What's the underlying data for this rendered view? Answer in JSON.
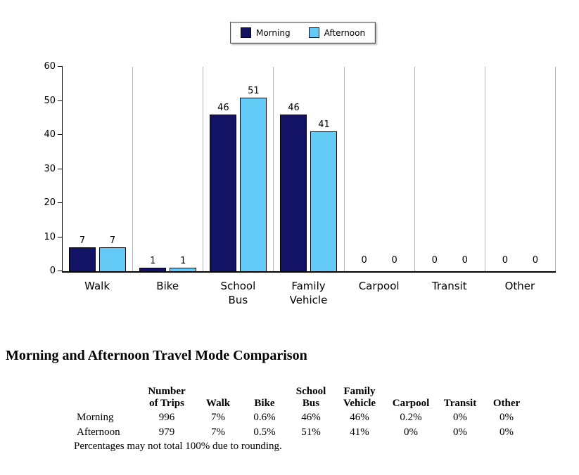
{
  "legend": {
    "items": [
      {
        "label": "Morning",
        "color": "#131366"
      },
      {
        "label": "Afternoon",
        "color": "#63cbf5"
      }
    ]
  },
  "chart_data": {
    "type": "bar",
    "title": "",
    "categories": [
      "Walk",
      "Bike",
      "School\nBus",
      "Family\nVehicle",
      "Carpool",
      "Transit",
      "Other"
    ],
    "series": [
      {
        "name": "Morning",
        "color": "#131366",
        "values": [
          7,
          1,
          46,
          46,
          0,
          0,
          0
        ]
      },
      {
        "name": "Afternoon",
        "color": "#63cbf5",
        "values": [
          7,
          1,
          51,
          41,
          0,
          0,
          0
        ]
      }
    ],
    "ylim": [
      0,
      60
    ],
    "yticks": [
      0,
      10,
      20,
      30,
      40,
      50,
      60
    ],
    "grid": "vertical-separators",
    "legend_position": "top-center",
    "bar_value_labels": true
  },
  "title": "Morning and Afternoon Travel Mode Comparison",
  "table": {
    "columns": [
      "",
      "Number\nof Trips",
      "Walk",
      "Bike",
      "School\nBus",
      "Family\nVehicle",
      "Carpool",
      "Transit",
      "Other"
    ],
    "rows": [
      {
        "label": "Morning",
        "values": [
          "996",
          "7%",
          "0.6%",
          "46%",
          "46%",
          "0.2%",
          "0%",
          "0%"
        ]
      },
      {
        "label": "Afternoon",
        "values": [
          "979",
          "7%",
          "0.5%",
          "51%",
          "41%",
          "0%",
          "0%",
          "0%"
        ]
      }
    ],
    "footnote": "Percentages may not total 100% due to rounding."
  }
}
